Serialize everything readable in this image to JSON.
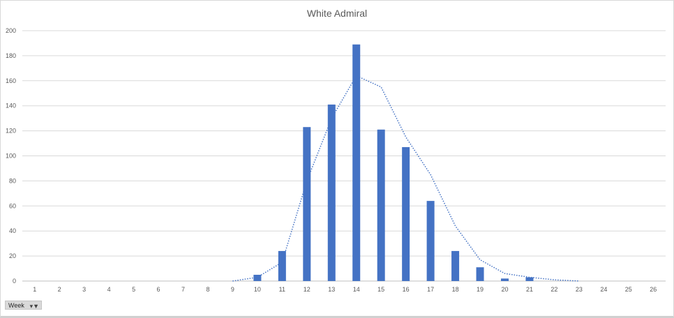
{
  "chart_data": {
    "type": "bar",
    "title": "White Admiral",
    "xlabel": "",
    "ylabel": "",
    "ylim": [
      0,
      200
    ],
    "y_ticks": [
      0,
      20,
      40,
      60,
      80,
      100,
      120,
      140,
      160,
      180,
      200
    ],
    "categories": [
      "1",
      "2",
      "3",
      "4",
      "5",
      "6",
      "7",
      "8",
      "9",
      "10",
      "11",
      "12",
      "13",
      "14",
      "15",
      "16",
      "17",
      "18",
      "19",
      "20",
      "21",
      "22",
      "23",
      "24",
      "25",
      "26"
    ],
    "values": [
      0,
      0,
      0,
      0,
      0,
      0,
      0,
      0,
      0,
      5,
      24,
      123,
      141,
      189,
      121,
      107,
      64,
      24,
      11,
      2,
      3,
      0,
      0,
      0,
      0,
      0
    ],
    "trendline": {
      "style": "dotted",
      "values": [
        0,
        0,
        0,
        0,
        0,
        0,
        0,
        0,
        0,
        3,
        15,
        80,
        130,
        164,
        155,
        115,
        85,
        44,
        17,
        6,
        3,
        1,
        0,
        0,
        0,
        0
      ]
    },
    "bar_color": "#4472c4",
    "grid": true
  },
  "field_button": {
    "label": "Week",
    "icon": "filter-dropdown-icon"
  }
}
